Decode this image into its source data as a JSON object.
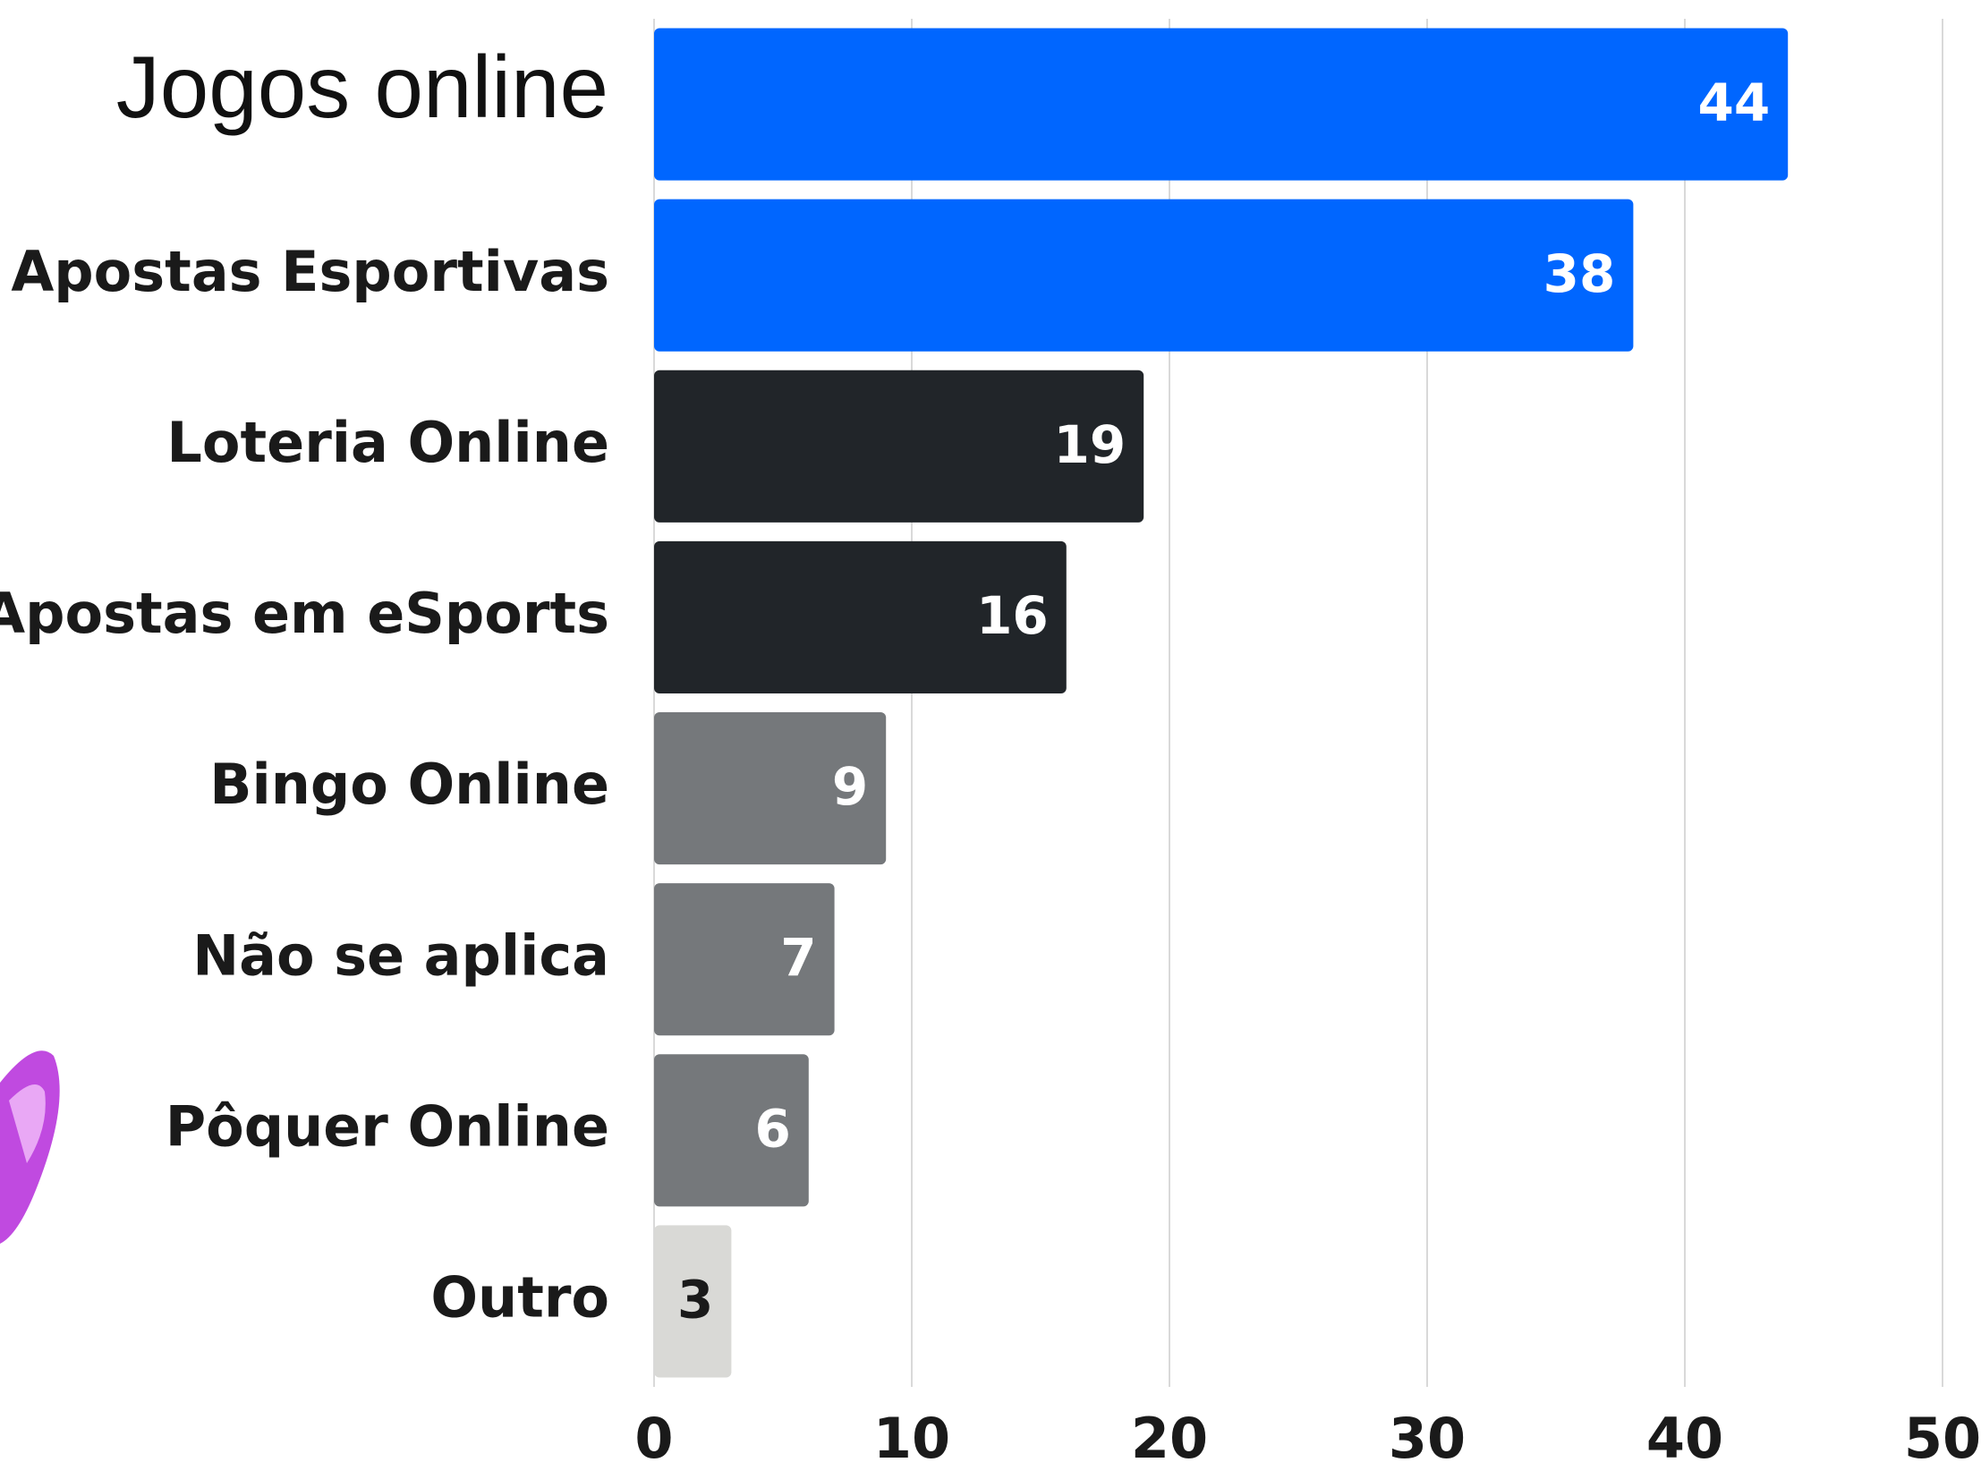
{
  "chart_data": {
    "type": "bar",
    "orientation": "horizontal",
    "title": "Jogos online",
    "categories": [
      null,
      "Apostas Esportivas",
      "Loteria Online",
      "Apostas em eSports",
      "Bingo Online",
      "Não se aplica",
      "Pôquer Online",
      "Outro"
    ],
    "values": [
      44,
      38,
      19,
      16,
      9,
      7,
      6,
      3
    ],
    "colors": [
      "#0066ff",
      "#0066ff",
      "#212529",
      "#212529",
      "#75787b",
      "#75787b",
      "#75787b",
      "#d9d9d6"
    ],
    "xlim": [
      0,
      50
    ],
    "xticks": [
      0,
      10,
      20,
      30,
      40,
      50
    ],
    "grid": true
  }
}
